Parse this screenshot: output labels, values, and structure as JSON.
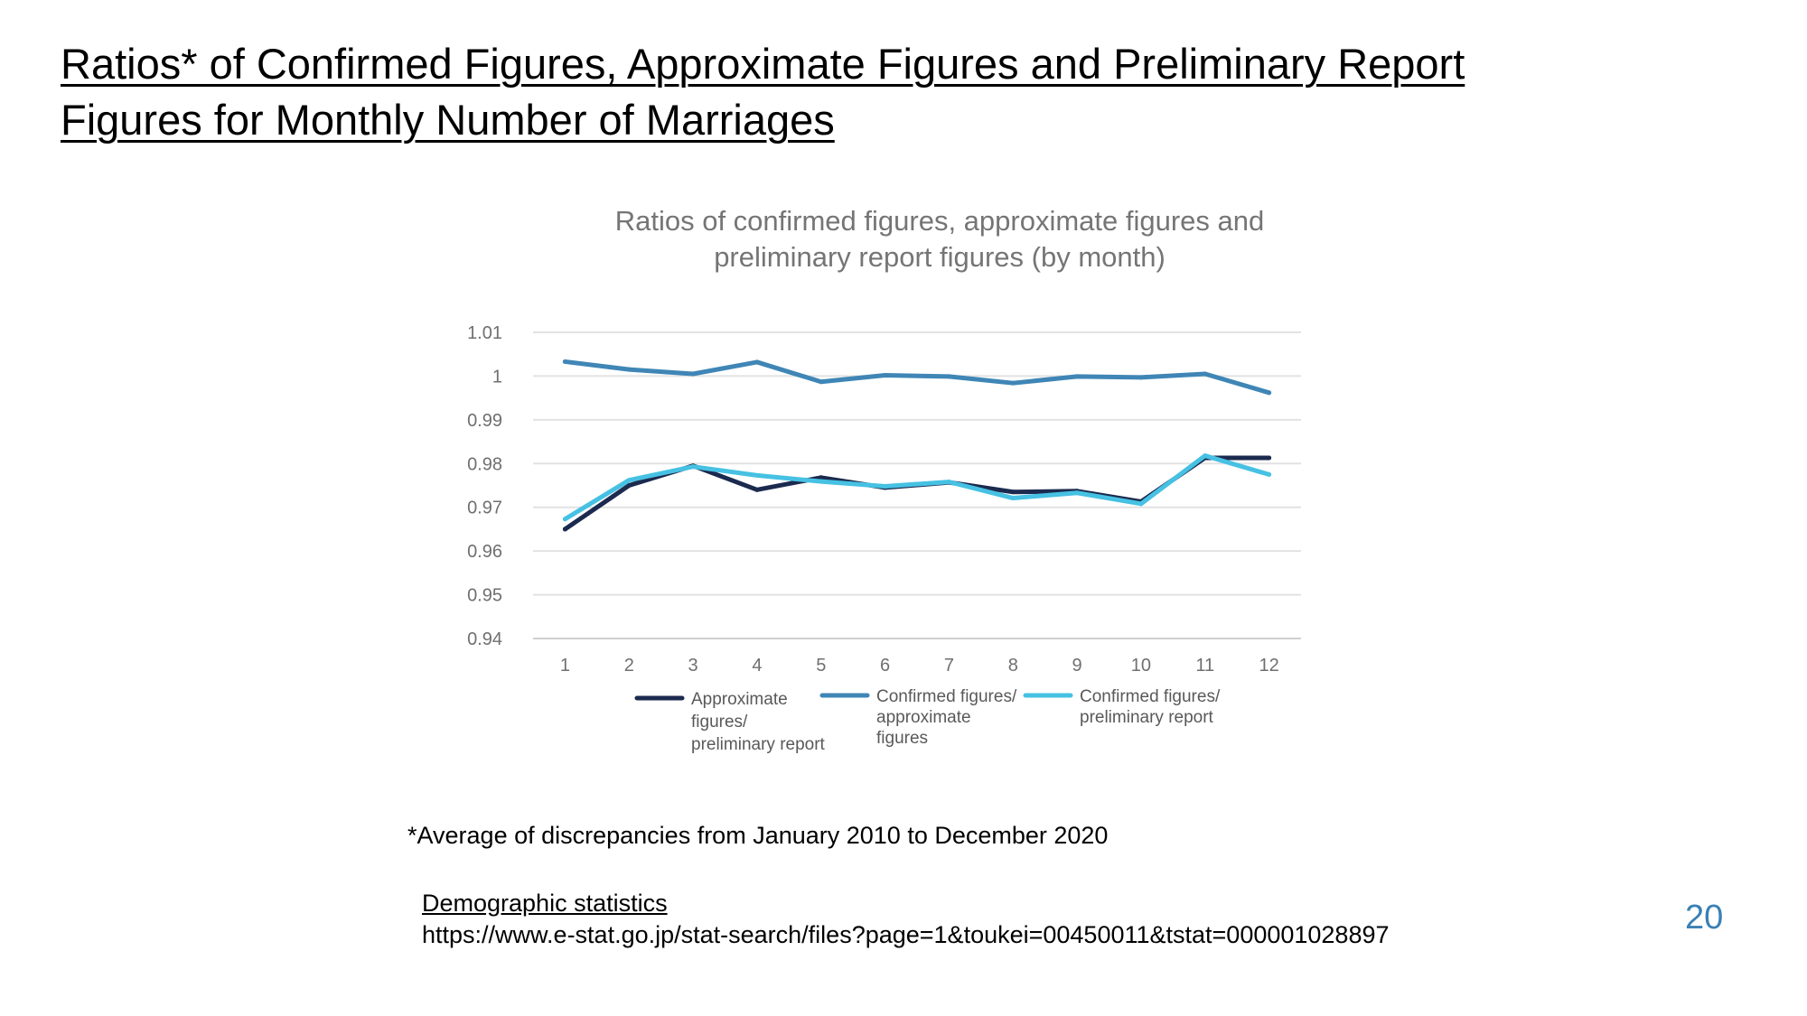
{
  "slide": {
    "title_line1": "Ratios* of Confirmed Figures, Approximate Figures and Preliminary Report",
    "title_line2": "Figures for Monthly Number of Marriages",
    "footnote": "*Average of discrepancies from January 2010 to December 2020",
    "source_title": "Demographic statistics",
    "source_url": "https://www.e-stat.go.jp/stat-search/files?page=1&toukei=00450011&tstat=000001028897",
    "page_number": "20"
  },
  "chart_data": {
    "type": "line",
    "title": "Ratios of confirmed figures, approximate figures and preliminary report figures (by month)",
    "title_lines": [
      "Ratios of confirmed figures, approximate figures and",
      "preliminary report figures (by month)"
    ],
    "xlabel": "",
    "ylabel": "",
    "categories": [
      "1",
      "2",
      "3",
      "4",
      "5",
      "6",
      "7",
      "8",
      "9",
      "10",
      "11",
      "12"
    ],
    "ylim": [
      0.94,
      1.01
    ],
    "yticks": [
      1.01,
      1,
      0.99,
      0.98,
      0.97,
      0.96,
      0.95,
      0.94
    ],
    "ytick_labels": [
      "1.01",
      "1",
      "0.99",
      "0.98",
      "0.97",
      "0.96",
      "0.95",
      "0.94"
    ],
    "grid": true,
    "legend_position": "bottom",
    "series": [
      {
        "name": "Approximate figures/ preliminary report",
        "legend_lines": [
          "Approximate",
          "figures/",
          "preliminary report"
        ],
        "color": "#1b2a4e",
        "values": [
          0.965,
          0.975,
          0.9795,
          0.974,
          0.9768,
          0.9745,
          0.9757,
          0.9735,
          0.9737,
          0.9713,
          0.9813,
          0.9813
        ]
      },
      {
        "name": "Confirmed figures/ approximate figures",
        "legend_lines": [
          "Confirmed figures/",
          "approximate",
          "figures"
        ],
        "color": "#3f86b6",
        "values": [
          1.0033,
          1.0015,
          1.0005,
          1.0032,
          0.9987,
          1.0002,
          0.9999,
          0.9984,
          0.9999,
          0.9997,
          1.0005,
          0.9962
        ]
      },
      {
        "name": "Confirmed figures/ preliminary report",
        "legend_lines": [
          "Confirmed figures/",
          "preliminary report"
        ],
        "color": "#46c1e3",
        "values": [
          0.9673,
          0.9762,
          0.9793,
          0.9773,
          0.9759,
          0.9748,
          0.9758,
          0.9721,
          0.9733,
          0.9708,
          0.9818,
          0.9775
        ]
      }
    ]
  }
}
